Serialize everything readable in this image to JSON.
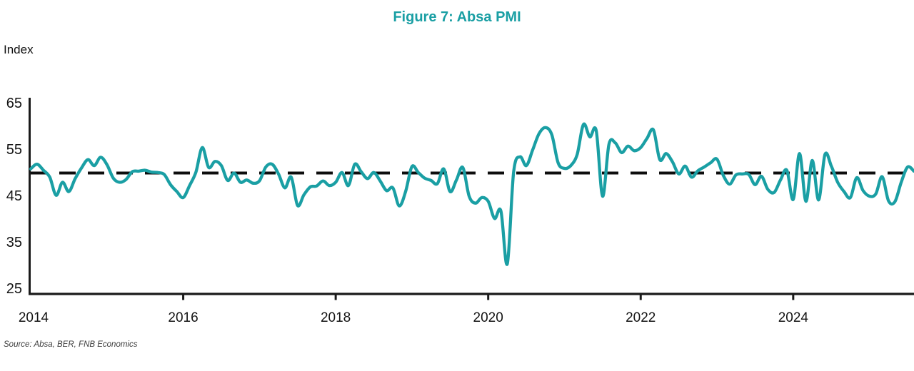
{
  "header": {
    "title": "Figure 7: Absa PMI"
  },
  "colors": {
    "accent_teal": "#1A9FA4",
    "reference_black": "#0d0d0d",
    "axis_black": "#1a1a1a"
  },
  "source": {
    "text": "Source: Absa, BER, FNB Economics"
  },
  "chart_data": {
    "type": "line",
    "title": "Figure 7: Absa PMI",
    "ylabel": "Index",
    "xlabel": "",
    "grid": false,
    "legend": "none",
    "ylim": [
      25,
      65
    ],
    "y_ticks": [
      65,
      55,
      45,
      35,
      25
    ],
    "x_tick_labels": [
      "2014",
      "2016",
      "2018",
      "2020",
      "2022",
      "2024"
    ],
    "x_tick_years": [
      2014,
      2016,
      2018,
      2020,
      2022,
      2024
    ],
    "x_range_years": [
      2014.0,
      2025.58
    ],
    "reference_line": 50,
    "frequency": "monthly",
    "start_month": "2014-01",
    "series": [
      {
        "name": "Absa PMI",
        "color": "#1A9FA4",
        "values": [
          50.9,
          51.9,
          50.6,
          49.1,
          45.2,
          48.0,
          46.0,
          48.8,
          51.1,
          52.9,
          51.6,
          53.4,
          51.8,
          48.9,
          48.0,
          48.6,
          50.3,
          50.4,
          50.6,
          50.2,
          50.1,
          49.7,
          47.5,
          46.0,
          44.7,
          47.3,
          50.2,
          55.5,
          51.2,
          52.5,
          51.6,
          48.4,
          50.0,
          48.0,
          48.5,
          47.8,
          48.3,
          51.3,
          51.9,
          49.8,
          46.8,
          49.1,
          43.0,
          45.3,
          47.0,
          47.2,
          48.3,
          47.3,
          48.0,
          50.1,
          47.3,
          51.9,
          50.3,
          48.8,
          50.1,
          48.3,
          46.2,
          46.8,
          42.9,
          46.0,
          51.4,
          50.1,
          48.9,
          48.4,
          47.7,
          50.9,
          46.0,
          48.5,
          51.2,
          45.0,
          43.5,
          44.7,
          43.9,
          40.2,
          41.8,
          30.4,
          50.2,
          53.5,
          51.6,
          55.0,
          58.5,
          59.8,
          58.3,
          52.2,
          51.0,
          51.6,
          54.0,
          60.5,
          57.8,
          59.1,
          45.0,
          56.2,
          56.5,
          54.4,
          55.8,
          54.8,
          55.5,
          57.5,
          59.3,
          52.9,
          54.2,
          52.4,
          49.8,
          51.5,
          49.1,
          50.5,
          51.3,
          52.2,
          53.0,
          49.5,
          47.6,
          49.6,
          49.8,
          49.7,
          47.5,
          49.3,
          46.5,
          45.8,
          48.5,
          50.6,
          44.3,
          54.2,
          43.9,
          52.7,
          44.2,
          54.0,
          51.5,
          48.0,
          46.0,
          44.7,
          49.0,
          46.2,
          45.0,
          45.5,
          49.2,
          44.0,
          43.8,
          48.0,
          51.3,
          50.4
        ]
      }
    ]
  }
}
